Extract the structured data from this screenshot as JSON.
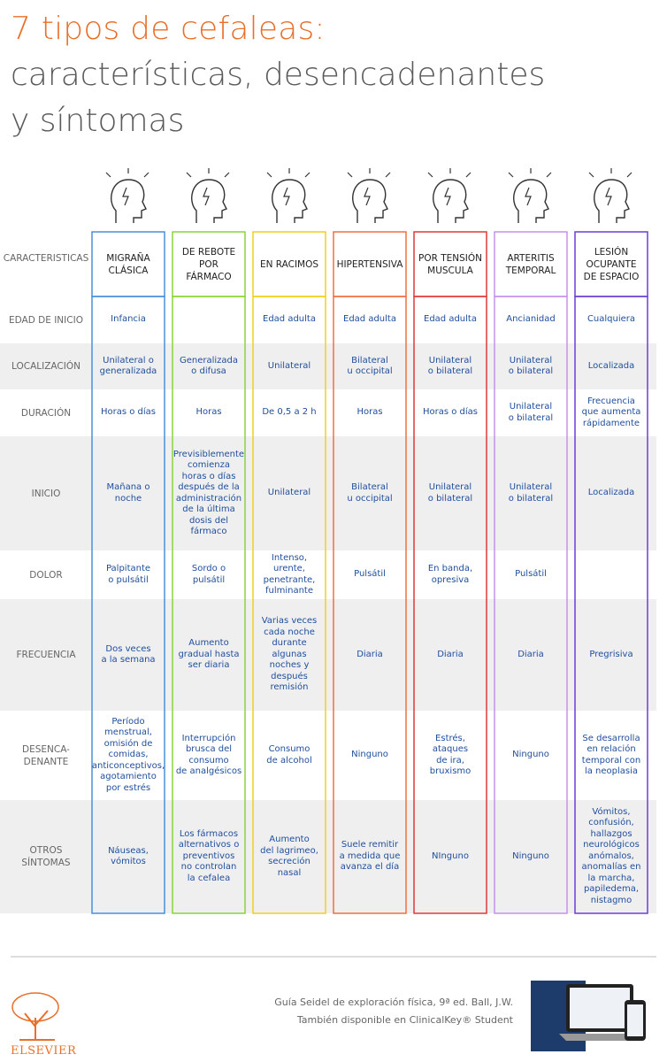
{
  "header": {
    "title": "7 tipos de cefaleas:",
    "subtitle": [
      "características, desencadenantes",
      "y síntomas"
    ]
  },
  "table": {
    "corner": "CARACTERISTICAS",
    "columns": [
      {
        "name": "MIGRAÑA\nCLÁSICA",
        "color": "#4a8fdc"
      },
      {
        "name": "DE REBOTE\nPOR FÁRMACO",
        "color": "#8bd43a"
      },
      {
        "name": "EN RACIMOS",
        "color": "#f2cf1a"
      },
      {
        "name": "HIPERTENSIVA",
        "color": "#f0703e"
      },
      {
        "name": "POR TENSIÓN\nMUSCULA",
        "color": "#e03a3a"
      },
      {
        "name": "ARTERITIS\nTEMPORAL",
        "color": "#c392ea"
      },
      {
        "name": "LESIÓN\nOCUPANTE\nDE ESPACIO",
        "color": "#6a3fd6"
      }
    ],
    "rows": [
      {
        "label": "EDAD DE INICIO",
        "cells": [
          "Infancia",
          null,
          "Edad adulta",
          "Edad adulta",
          "Edad adulta",
          "Ancianidad",
          "Cualquiera"
        ]
      },
      {
        "label": "LOCALIZACIÓN",
        "cells": [
          "Unilateral o\ngeneralizada",
          "Generalizada\no difusa",
          "Unilateral",
          "Bilateral\nu occipital",
          "Unilateral\no bilateral",
          "Unilateral\no bilateral",
          "Localizada"
        ]
      },
      {
        "label": "DURACIÓN",
        "cells": [
          "Horas o días",
          "Horas",
          "De 0,5 a 2 h",
          "Horas",
          "Horas o días",
          "Unilateral\no bilateral",
          "Frecuencia\nque aumenta\nrápidamente"
        ]
      },
      {
        "label": "INICIO",
        "cells": [
          "Mañana o\nnoche",
          "Previsiblemente\ncomienza\nhoras o días\ndespués de la\nadministración\nde la última\ndosis del\nfármaco",
          "Unilateral",
          "Bilateral\nu occipital",
          "Unilateral\no bilateral",
          "Unilateral\no bilateral",
          "Localizada"
        ]
      },
      {
        "label": "DOLOR",
        "cells": [
          "Palpitante\no pulsátil",
          "Sordo o pulsátil",
          "Intenso, urente,\npenetrante,\nfulminante",
          "Pulsátil",
          "En banda,\nopresiva",
          "Pulsátil",
          null
        ]
      },
      {
        "label": "FRECUENCIA",
        "cells": [
          "Dos veces\na la semana",
          "Aumento\ngradual hasta\nser diaria",
          "Varias veces\ncada noche\ndurante algunas\nnoches y\ndespués\nremisión",
          "Diaria",
          "Diaria",
          "Diaria",
          "Pregrisiva"
        ]
      },
      {
        "label": "DESENCA-\nDENANTE",
        "cells": [
          "Período menstrual,\nomisión de\ncomidas,\nanticonceptivos,\nagotamiento\npor estrés",
          "Interrupción\nbrusca del\nconsumo\nde analgésicos",
          "Consumo\nde alcohol",
          "Ninguno",
          "Estrés, ataques\nde ira, bruxismo",
          "Ninguno",
          "Se desarrolla\nen relación\ntemporal con\nla neoplasia"
        ]
      },
      {
        "label": "OTROS\nSÍNTOMAS",
        "cells": [
          "Náuseas,\nvómitos",
          "Los fármacos\nalternativos o\npreventivos\nno controlan\nla cefalea",
          "Aumento\ndel lagrimeo,\nsecreción nasal",
          "Suele remitir\na medida que\navanza el día",
          "NInguno",
          "Ninguno",
          "Vómitos,\nconfusión,\nhallazgos\nneurológicos\nanómalos,\nanomalías en\nla marcha,\npapiledema,\nnistagmo"
        ]
      }
    ]
  },
  "footer": {
    "reference": [
      "Guía Seidel de exploración física, 9ª ed. Ball, J.W.",
      "También disponible en ClinicalKey® Student"
    ],
    "logo": "ELSEVIER"
  }
}
